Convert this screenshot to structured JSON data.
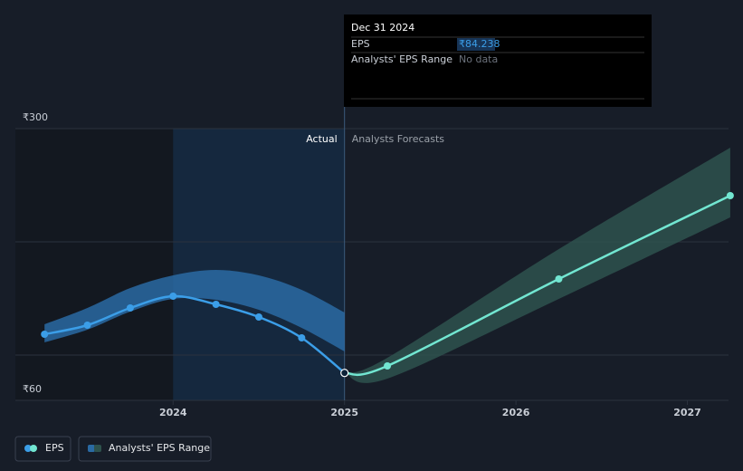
{
  "chart_data": {
    "type": "line",
    "xlim": [
      2023.08,
      2027.24
    ],
    "ylim": [
      60,
      300
    ],
    "xticks": [
      2024,
      2025,
      2026,
      2027
    ],
    "yticks": [
      {
        "value": 60,
        "label": "₹60"
      },
      {
        "value": 300,
        "label": "₹300"
      }
    ],
    "grid_lines": [
      100,
      200,
      300
    ],
    "forecast_start": 2025,
    "actual_label": "Actual",
    "forecast_label": "Analysts Forecasts",
    "series": [
      {
        "name": "EPS",
        "color": "#3b9ee8",
        "x": [
          2023.25,
          2023.5,
          2023.75,
          2024,
          2024.25,
          2024.5,
          2024.75,
          2025
        ],
        "values": [
          118.4,
          126.4,
          141.6,
          152,
          144.8,
          133.6,
          115.2,
          84.238
        ],
        "value_labels": [
          null,
          null,
          null,
          null,
          null,
          null,
          null,
          "₹84.238"
        ],
        "forecast": {
          "color": "#72e6d1",
          "x": [
            2025,
            2025.25,
            2026.25,
            2027.25
          ],
          "values": [
            84.238,
            90.4,
            167.2,
            240.8
          ]
        }
      },
      {
        "name": "Analysts' EPS Range",
        "color": "#2a6aa3",
        "x": [
          2023.25,
          2023.5,
          2023.75,
          2024,
          2024.25,
          2024.5,
          2024.75,
          2025
        ],
        "low": [
          111.2,
          122.4,
          138.4,
          149.6,
          148.8,
          140,
          124,
          103.2
        ],
        "high": [
          127.2,
          141.6,
          159.2,
          170.4,
          175.2,
          170.4,
          157.6,
          137.6
        ],
        "forecast": {
          "color": "#2e524d",
          "x": [
            2025,
            2025.25,
            2026.25,
            2027.25
          ],
          "low": [
            84.238,
            79.2,
            149.6,
            221.6
          ],
          "high": [
            84.238,
            97.6,
            193.6,
            283.2
          ]
        }
      }
    ],
    "tooltip": {
      "title": "Dec 31 2024",
      "no_data": "No data"
    }
  }
}
